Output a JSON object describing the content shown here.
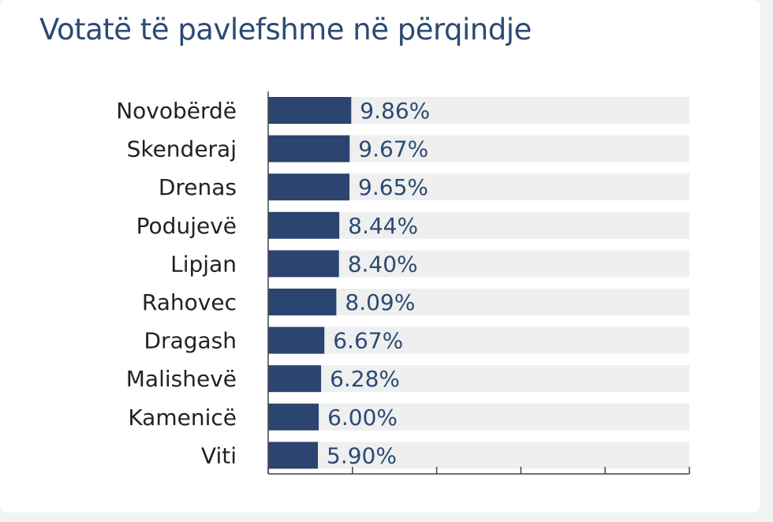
{
  "chart_data": {
    "type": "bar",
    "orientation": "horizontal",
    "title": "Votatë të pavlefshme në përqindje",
    "xlabel": "",
    "ylabel": "",
    "xlim": [
      0,
      50
    ],
    "grid": false,
    "unit": "%",
    "bar_color": "#2b4470",
    "track_color": "#efefef",
    "categories": [
      "Novobërdë",
      "Skenderaj",
      "Drenas",
      "Podujevë",
      "Lipjan",
      "Rahovec",
      "Dragash",
      "Malishevë",
      "Kamenicë",
      "Viti"
    ],
    "values": [
      9.86,
      9.67,
      9.65,
      8.44,
      8.4,
      8.09,
      6.67,
      6.28,
      6.0,
      5.9
    ],
    "value_labels": [
      "9.86%",
      "9.67%",
      "9.65%",
      "8.44%",
      "8.40%",
      "8.09%",
      "6.67%",
      "6.28%",
      "6.00%",
      "5.90%"
    ]
  }
}
